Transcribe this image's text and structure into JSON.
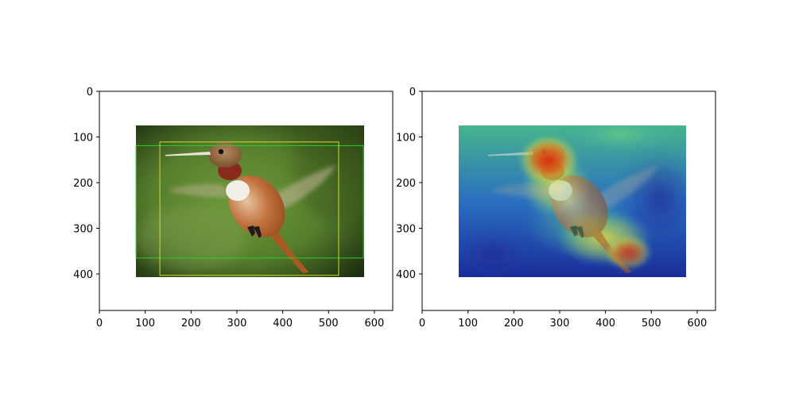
{
  "chart_data": [
    {
      "type": "image",
      "title": "",
      "xlabel": "",
      "ylabel": "",
      "xlim": [
        0,
        640
      ],
      "ylim": [
        480,
        0
      ],
      "xticks": [
        0,
        100,
        200,
        300,
        400,
        500,
        600
      ],
      "yticks": [
        0,
        100,
        200,
        300,
        400
      ],
      "image_extent": {
        "x": [
          80,
          576
        ],
        "y": [
          77,
          407
        ]
      },
      "content": "hummingbird photo",
      "boxes": [
        {
          "color": "#2ecc2e",
          "x": [
            80,
            576
          ],
          "y": [
            119,
            365
          ]
        },
        {
          "color": "#d6d630",
          "x": [
            132,
            522
          ],
          "y": [
            111,
            403
          ]
        }
      ]
    },
    {
      "type": "image",
      "title": "",
      "xlabel": "",
      "ylabel": "",
      "xlim": [
        0,
        640
      ],
      "ylim": [
        480,
        0
      ],
      "xticks": [
        0,
        100,
        200,
        300,
        400,
        500,
        600
      ],
      "yticks": [
        0,
        100,
        200,
        300,
        400
      ],
      "image_extent": {
        "x": [
          80,
          576
        ],
        "y": [
          77,
          407
        ]
      },
      "content": "hummingbird photo with jet heatmap overlay",
      "colormap": "jet"
    }
  ]
}
